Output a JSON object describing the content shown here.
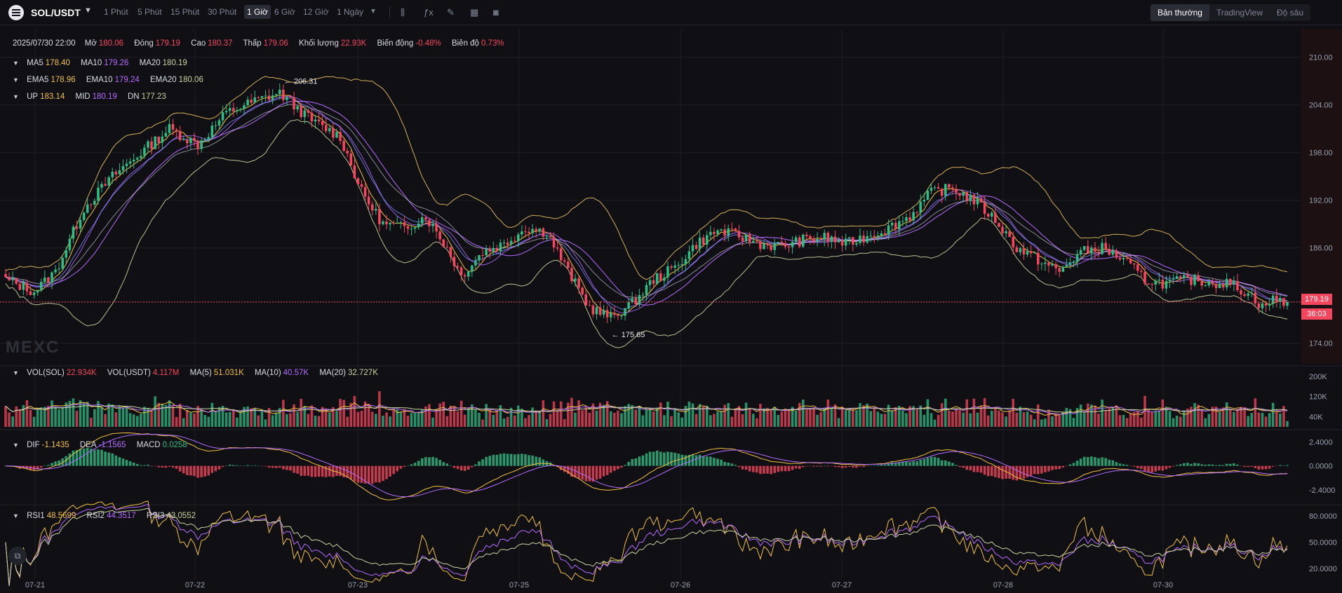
{
  "symbol": {
    "name": "SOL/USDT",
    "icon": "solana-logo-icon"
  },
  "timeframes": [
    "1 Phút",
    "5 Phút",
    "15 Phút",
    "30 Phút",
    "1 Giờ",
    "6 Giờ",
    "12 Giờ",
    "1 Ngày"
  ],
  "active_timeframe": "1 Giờ",
  "view_tabs": [
    "Bản thường",
    "TradingView",
    "Độ sâu"
  ],
  "active_view": "Bản thường",
  "ohlc": {
    "date": "2025/07/30 22:00",
    "open_label": "Mở",
    "open": "180.06",
    "close_label": "Đóng",
    "close": "179.19",
    "high_label": "Cao",
    "high": "180.37",
    "low_label": "Thấp",
    "low": "179.06",
    "volume_label": "Khối lượng",
    "volume": "22.93K",
    "change_label": "Biến động",
    "change": "-0.48%",
    "amplitude_label": "Biên độ",
    "amplitude": "0.73%"
  },
  "ma": {
    "ma5_label": "MA5",
    "ma5": "178.40",
    "ma10_label": "MA10",
    "ma10": "179.26",
    "ma20_label": "MA20",
    "ma20": "180.19"
  },
  "ema": {
    "ema5_label": "EMA5",
    "ema5": "178.96",
    "ema10_label": "EMA10",
    "ema10": "179.24",
    "ema20_label": "EMA20",
    "ema20": "180.06"
  },
  "boll": {
    "up_label": "UP",
    "up": "183.14",
    "mid_label": "MID",
    "mid": "180.19",
    "dn_label": "DN",
    "dn": "177.23"
  },
  "vol": {
    "sol_label": "VOL(SOL)",
    "sol": "22.934K",
    "usdt_label": "VOL(USDT)",
    "usdt": "4.117M",
    "ma5_label": "MA(5)",
    "ma5": "51.031K",
    "ma10_label": "MA(10)",
    "ma10": "40.57K",
    "ma20_label": "MA(20)",
    "ma20": "32.727K"
  },
  "macd": {
    "dif_label": "DIF",
    "dif": "-1.1435",
    "dea_label": "DEA",
    "dea": "-1.1565",
    "macd_label": "MACD",
    "macd": "0.0258"
  },
  "rsi": {
    "rsi1_label": "RSI1",
    "rsi1": "48.5699",
    "rsi2_label": "RSI2",
    "rsi2": "44.3517",
    "rsi3_label": "RSI3",
    "rsi3": "43.0552"
  },
  "watermark": "MEXC",
  "annotations": {
    "high": "206.31",
    "low": "175.65"
  },
  "price_tag": {
    "price": "179.19",
    "countdown": "36:03"
  },
  "colors": {
    "up": "#2ebd85",
    "down": "#f6465d",
    "ma5": "#f0c040",
    "ma10": "#b36bff",
    "ma20": "#c9d4a0",
    "boll": "#e8c060",
    "grid": "#1c1e25",
    "background": "#101014"
  },
  "chart_data": {
    "type": "candlestick",
    "x_ticks": [
      "07-21",
      "07-22",
      "07-23",
      "07-25",
      "07-26",
      "07-27",
      "07-28",
      "07-30"
    ],
    "price_axis": [
      "210.00",
      "204.00",
      "198.00",
      "192.00",
      "186.00",
      "174.00"
    ],
    "price_ylim": [
      171.5,
      213.5
    ],
    "volume_axis": [
      "200K",
      "120K",
      "40K"
    ],
    "volume_ylim": [
      0,
      230000
    ],
    "macd_axis": [
      "2.4000",
      "0.0000",
      "-2.4000"
    ],
    "macd_ylim": [
      -3.6,
      3.2
    ],
    "rsi_axis": [
      "80.0000",
      "50.0000",
      "20.0000"
    ],
    "rsi_ylim": [
      8,
      92
    ],
    "close_anchors": [
      [
        0,
        182
      ],
      [
        8,
        180.5
      ],
      [
        14,
        183
      ],
      [
        22,
        191
      ],
      [
        30,
        195
      ],
      [
        38,
        198
      ],
      [
        46,
        201
      ],
      [
        54,
        199
      ],
      [
        62,
        203
      ],
      [
        70,
        204.5
      ],
      [
        77,
        205.5
      ],
      [
        86,
        202
      ],
      [
        94,
        200
      ],
      [
        100,
        193
      ],
      [
        106,
        189
      ],
      [
        112,
        188.5
      ],
      [
        118,
        190
      ],
      [
        124,
        186
      ],
      [
        128,
        182.5
      ],
      [
        134,
        185.5
      ],
      [
        140,
        186.5
      ],
      [
        146,
        188.5
      ],
      [
        152,
        188
      ],
      [
        158,
        183
      ],
      [
        164,
        178.5
      ],
      [
        170,
        177.2
      ],
      [
        176,
        179
      ],
      [
        182,
        182
      ],
      [
        188,
        183.5
      ],
      [
        194,
        186.5
      ],
      [
        200,
        188.2
      ],
      [
        206,
        187.5
      ],
      [
        212,
        186.5
      ],
      [
        218,
        186.2
      ],
      [
        224,
        187
      ],
      [
        230,
        187.3
      ],
      [
        236,
        186.5
      ],
      [
        242,
        187.5
      ],
      [
        248,
        188.5
      ],
      [
        254,
        190
      ],
      [
        260,
        193
      ],
      [
        266,
        193.5
      ],
      [
        272,
        192
      ],
      [
        278,
        189.5
      ],
      [
        284,
        186
      ],
      [
        290,
        184.5
      ],
      [
        296,
        183
      ],
      [
        302,
        185.5
      ],
      [
        308,
        186
      ],
      [
        314,
        184.5
      ],
      [
        320,
        182
      ],
      [
        326,
        181.5
      ],
      [
        332,
        182
      ],
      [
        338,
        181.7
      ],
      [
        344,
        181.5
      ],
      [
        350,
        180
      ],
      [
        353,
        178.5
      ],
      [
        356,
        179.5
      ],
      [
        360,
        179.19
      ]
    ]
  }
}
